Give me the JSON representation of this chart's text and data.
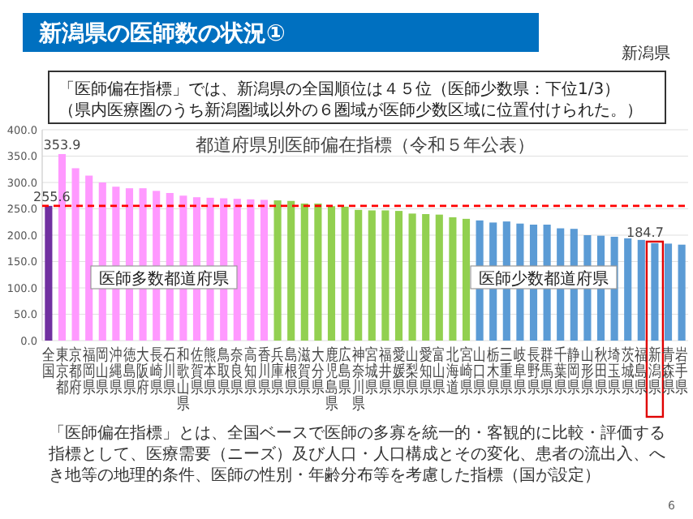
{
  "chart_data": {
    "type": "bar",
    "title": "新潟県の医師数の状況①",
    "subtitle": "都道府県別医師偏在指標（令和５年公表）",
    "categories": [
      "全国",
      "東京都",
      "京都府",
      "福岡県",
      "岡山県",
      "沖縄県",
      "徳島県",
      "大阪府",
      "長崎県",
      "石川県",
      "和歌山県",
      "佐賀県",
      "熊本県",
      "鳥取県",
      "奈良県",
      "高知県",
      "香川県",
      "兵庫県",
      "島根県",
      "滋賀県",
      "大分県",
      "鹿児島県",
      "広島県",
      "神奈川県",
      "宮城県",
      "福井県",
      "愛媛県",
      "山梨県",
      "愛知県",
      "富山県",
      "北海道",
      "宮崎県",
      "山口県",
      "栃木県",
      "三重県",
      "岐阜県",
      "長野県",
      "群馬県",
      "千葉県",
      "静岡県",
      "山形県",
      "秋田県",
      "埼玉県",
      "茨城県",
      "福島県",
      "新潟県",
      "青森県",
      "岩手県"
    ],
    "values": [
      255.6,
      353.9,
      327,
      313,
      300,
      292,
      289,
      289,
      284,
      280,
      275,
      272,
      271,
      270,
      269,
      268,
      267,
      266,
      265,
      260,
      260,
      255,
      254,
      248,
      247,
      247,
      246,
      241,
      240,
      239,
      234,
      231,
      228,
      224,
      226,
      222,
      220,
      220,
      213,
      212,
      200,
      199,
      197,
      194,
      191,
      184.7,
      184,
      182
    ],
    "colors": [
      "#7030a0",
      "#ff99ff",
      "#ff99ff",
      "#ff99ff",
      "#ff99ff",
      "#ff99ff",
      "#ff99ff",
      "#ff99ff",
      "#ff99ff",
      "#ff99ff",
      "#ff99ff",
      "#ff99ff",
      "#ff99ff",
      "#ff99ff",
      "#ff99ff",
      "#ff99ff",
      "#ff99ff",
      "#92d050",
      "#92d050",
      "#92d050",
      "#92d050",
      "#92d050",
      "#92d050",
      "#92d050",
      "#92d050",
      "#92d050",
      "#92d050",
      "#92d050",
      "#92d050",
      "#92d050",
      "#92d050",
      "#92d050",
      "#5b9bd5",
      "#5b9bd5",
      "#5b9bd5",
      "#5b9bd5",
      "#5b9bd5",
      "#5b9bd5",
      "#5b9bd5",
      "#5b9bd5",
      "#5b9bd5",
      "#5b9bd5",
      "#5b9bd5",
      "#5b9bd5",
      "#5b9bd5",
      "#5b9bd5",
      "#5b9bd5",
      "#5b9bd5"
    ],
    "value_labels": [
      "255.6",
      "353.9",
      null,
      null,
      null,
      null,
      null,
      null,
      null,
      null,
      null,
      null,
      null,
      null,
      null,
      null,
      null,
      null,
      null,
      null,
      null,
      null,
      null,
      null,
      null,
      null,
      null,
      null,
      null,
      null,
      null,
      null,
      null,
      null,
      null,
      null,
      null,
      null,
      null,
      null,
      null,
      null,
      null,
      null,
      null,
      null,
      null,
      null
    ],
    "ylim": [
      0,
      400
    ],
    "yticks": [
      {
        "value": 0,
        "label": "0.0"
      },
      {
        "value": 50,
        "label": "50.0"
      },
      {
        "value": 100,
        "label": "100.0"
      },
      {
        "value": 150,
        "label": "150.0"
      },
      {
        "value": 200,
        "label": "200.0"
      },
      {
        "value": 250,
        "label": "250.0"
      },
      {
        "value": 300,
        "label": "300.0"
      },
      {
        "value": 350,
        "label": "350.0"
      },
      {
        "value": 400,
        "label": "400.0"
      }
    ],
    "grid": "y",
    "ref_lines": [
      {
        "axis": "y",
        "value": 255.6,
        "color": "#ff0000",
        "line_style": "dashed"
      }
    ],
    "annotations": [
      "新潟県",
      "「医師偏在指標」では、新潟県の全国順位は４５位（医師少数県：下位1/3）",
      "（県内医療圏のうち新潟圏域以外の６圏域が医師少数区域に位置付けられた。）",
      "医師多数都道府県",
      "医師少数都道府県",
      "「医師偏在指標」とは、全国ベースで医師の多寡を統一的・客観的に比較・評価する指標として、医療需要（ニーズ）及び人口・人口構成とその変化、患者の流出入、へき地等の地理的条件、医師の性別・年齢分布等を考慮した指標（国が設定）",
      "6",
      {
        "text": "184.7",
        "x": "新潟県",
        "y": 184.7
      }
    ]
  }
}
